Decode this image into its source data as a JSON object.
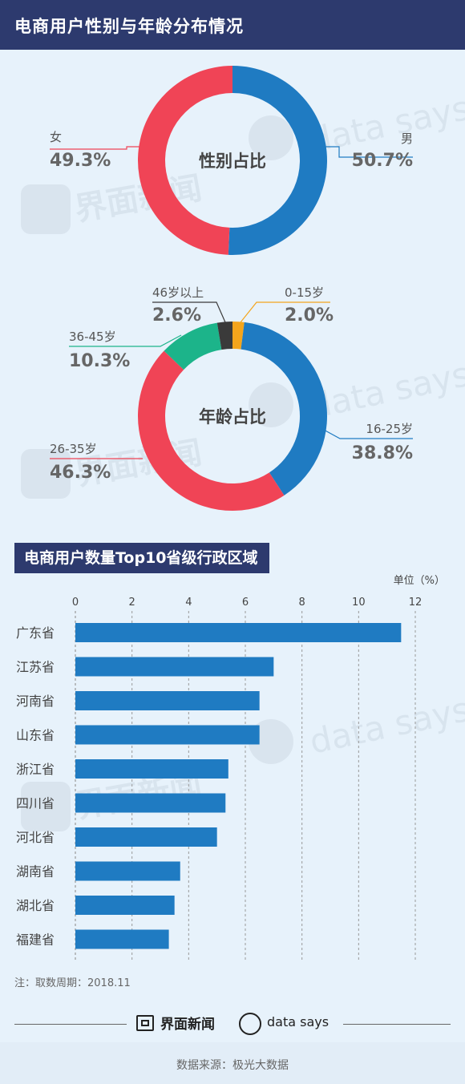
{
  "header": {
    "title": "电商用户性别与年龄分布情况"
  },
  "gender_chart": {
    "center_label": "性别占比",
    "slices": [
      {
        "label": "男",
        "value_text": "50.7%",
        "color": "#1f7bc2"
      },
      {
        "label": "女",
        "value_text": "49.3%",
        "color": "#f04456"
      }
    ]
  },
  "age_chart": {
    "center_label": "年龄占比",
    "slices": [
      {
        "label": "0-15岁",
        "value_text": "2.0%",
        "color": "#f4a51c"
      },
      {
        "label": "16-25岁",
        "value_text": "38.8%",
        "color": "#1f7bc2"
      },
      {
        "label": "26-35岁",
        "value_text": "46.3%",
        "color": "#f04456"
      },
      {
        "label": "36-45岁",
        "value_text": "10.3%",
        "color": "#1cb48a"
      },
      {
        "label": "46岁以上",
        "value_text": "2.6%",
        "color": "#3a3a3a"
      }
    ]
  },
  "bar_section": {
    "title": "电商用户数量Top10省级行政区域",
    "unit": "单位（%）"
  },
  "watermarks": {
    "cn": "界面新闻",
    "en": "data says"
  },
  "note": "注：取数周期：2018.11",
  "footer": {
    "brand_cn": "界面新闻",
    "brand_en": "data says",
    "source": "数据来源：极光大数据"
  },
  "chart_data": [
    {
      "type": "pie",
      "categories": [
        "男",
        "女"
      ],
      "values": [
        50.7,
        49.3
      ],
      "title": "性别占比"
    },
    {
      "type": "pie",
      "categories": [
        "0-15岁",
        "16-25岁",
        "26-35岁",
        "36-45岁",
        "46岁以上"
      ],
      "values": [
        2.0,
        38.8,
        46.3,
        10.3,
        2.6
      ],
      "title": "年龄占比"
    },
    {
      "type": "bar",
      "orientation": "horizontal",
      "categories": [
        "广东省",
        "江苏省",
        "河南省",
        "山东省",
        "浙江省",
        "四川省",
        "河北省",
        "湖南省",
        "湖北省",
        "福建省"
      ],
      "values": [
        11.5,
        7.0,
        6.5,
        6.5,
        5.4,
        5.3,
        5.0,
        3.7,
        3.5,
        3.3
      ],
      "xticks": [
        0,
        2,
        4,
        6,
        8,
        10,
        12
      ],
      "xlim": [
        0,
        12
      ],
      "color": "#1f7bc2",
      "grid": true,
      "title": "电商用户数量Top10省级行政区域",
      "unit": "单位（%）"
    }
  ]
}
